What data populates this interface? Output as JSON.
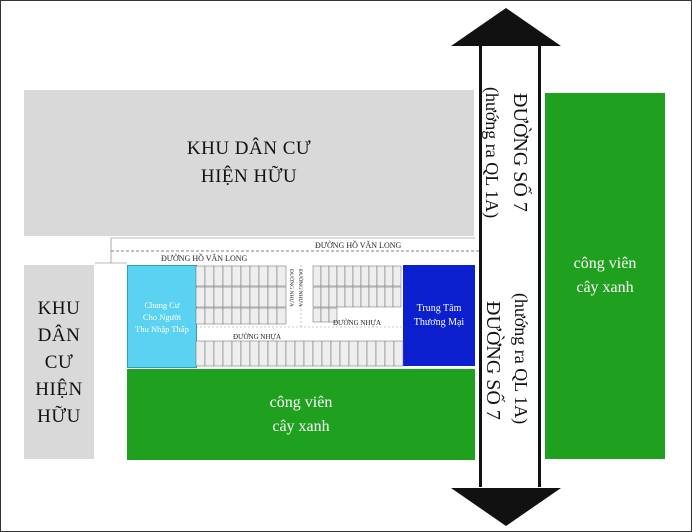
{
  "residential_north": {
    "line1": "KHU DÂN CƯ",
    "line2": "HIỆN HỮU"
  },
  "residential_west": {
    "line1": "KHU",
    "line2": "DÂN",
    "line3": "CƯ",
    "line4": "HIỆN",
    "line5": "HỮU"
  },
  "park_east": {
    "line1": "công viên",
    "line2": "cây xanh"
  },
  "park_south": {
    "line1": "công viên",
    "line2": "cây xanh"
  },
  "social_housing": {
    "line1": "Chung Cư",
    "line2": "Cho Người",
    "line3": "Thu Nhập Thấp"
  },
  "commercial_center": {
    "line1": "Trung Tâm",
    "line2": "Thương Mại"
  },
  "roads": {
    "ho_van_long_outer": "ĐƯỜNG HỒ VĂN LONG",
    "ho_van_long_inner": "ĐƯỜNG HỒ VĂN LONG",
    "duong_nhua_east": "ĐƯỜNG NHỰA",
    "duong_nhua_south": "ĐƯỜNG NHỰA",
    "duong_nhua_vertical_1": "ĐƯỜNG NHỰA",
    "duong_nhua_vertical_2": "ĐƯỜNG NHỰA",
    "road7_upper_name": "ĐƯỜNG SỐ 7",
    "road7_upper_dir": "(hướng ra QL 1A)",
    "road7_lower_name": "ĐƯỜNG SỐ 7",
    "road7_lower_dir": "(hướng ra QL 1A)"
  },
  "colors": {
    "residential": "#d9d9d9",
    "park": "#1fa11f",
    "social_housing": "#5bd2f2",
    "commercial": "#0b1fcf",
    "lot": "#eeeeee"
  }
}
